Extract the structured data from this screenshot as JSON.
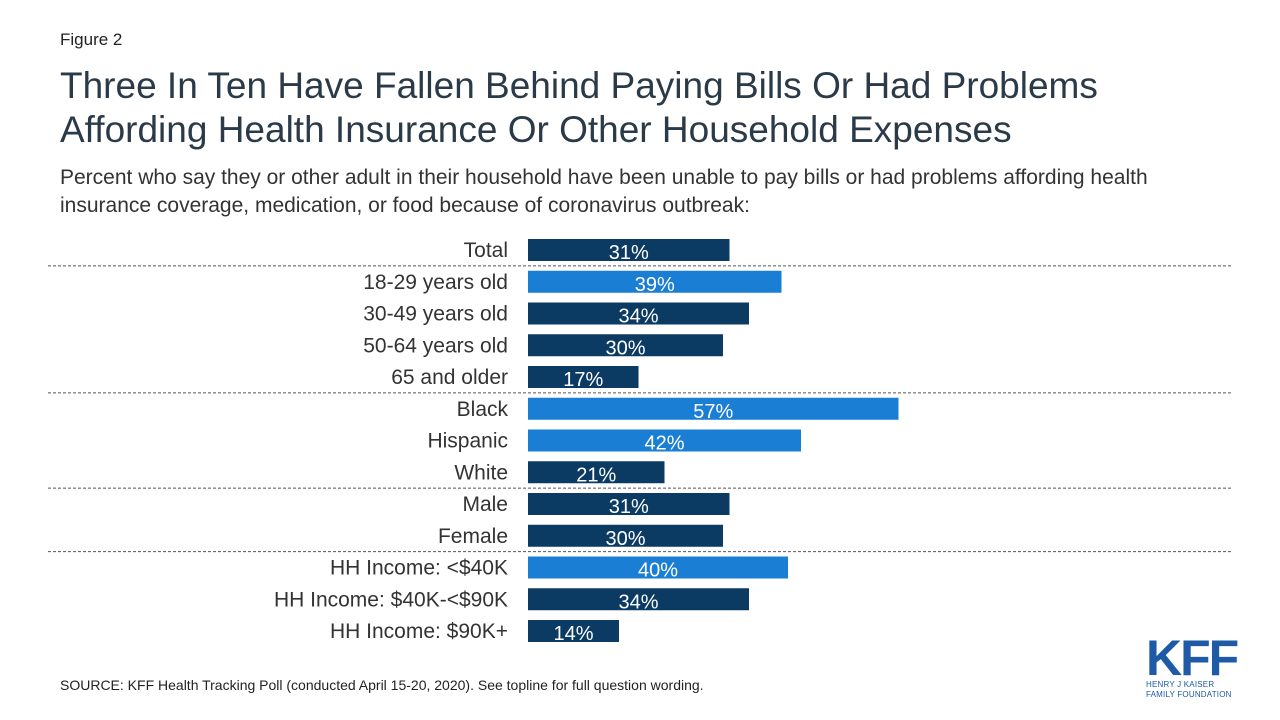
{
  "figure_label": "Figure 2",
  "title": "Three In Ten Have Fallen Behind Paying Bills Or Had Problems Affording Health Insurance Or Other Household Expenses",
  "subtitle": "Percent who say they or other adult in their household have been unable to pay bills or had problems affording health insurance coverage, medication, or food because of coronavirus outbreak:",
  "source": "SOURCE: KFF Health Tracking Poll (conducted April 15-20, 2020). See topline for full question wording.",
  "logo": {
    "text": "KFF",
    "sub_line1": "HENRY J KAISER",
    "sub_line2": "FAMILY FOUNDATION"
  },
  "colors": {
    "dark": "#0b3a62",
    "light": "#1a7fd4",
    "divider": "#555555"
  },
  "chart_data": {
    "type": "bar",
    "orientation": "horizontal",
    "title": "Three In Ten Have Fallen Behind Paying Bills Or Had Problems Affording Health Insurance Or Other Household Expenses",
    "xlabel": "",
    "ylabel": "",
    "xlim": [
      0,
      100
    ],
    "grid": false,
    "categories": [
      "Total",
      "18-29 years old",
      "30-49 years old",
      "50-64 years old",
      "65 and older",
      "Black",
      "Hispanic",
      "White",
      "Male",
      "Female",
      "HH Income: <$40K",
      "HH Income: $40K-<$90K",
      "HH Income: $90K+"
    ],
    "values": [
      31,
      39,
      34,
      30,
      17,
      57,
      42,
      21,
      31,
      30,
      40,
      34,
      14
    ],
    "data_labels": [
      "31%",
      "39%",
      "34%",
      "30%",
      "17%",
      "57%",
      "42%",
      "21%",
      "31%",
      "30%",
      "40%",
      "34%",
      "14%"
    ],
    "highlight": [
      false,
      true,
      false,
      false,
      false,
      true,
      true,
      false,
      false,
      false,
      true,
      false,
      false
    ],
    "group_dividers_after": [
      0,
      4,
      7,
      9
    ]
  }
}
